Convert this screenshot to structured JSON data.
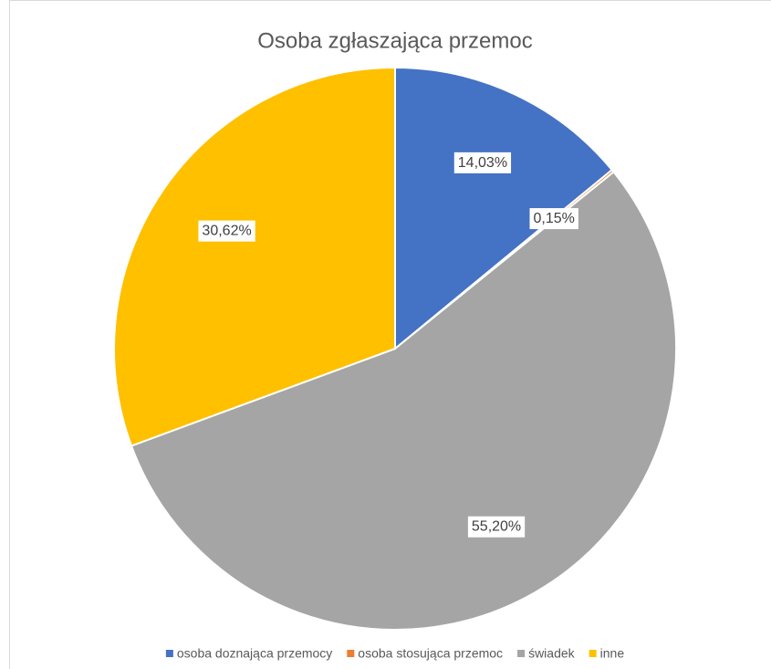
{
  "chart_data": {
    "type": "pie",
    "title": "Osoba zgłaszająca przemoc",
    "categories": [
      "osoba doznająca przemocy",
      "osoba stosująca przemoc",
      "świadek",
      "inne"
    ],
    "values": [
      14.03,
      0.15,
      55.2,
      30.62
    ],
    "value_labels": [
      "14,03%",
      "0,15%",
      "55,20%",
      "30,62%"
    ],
    "colors": [
      "#4472c4",
      "#ed7d31",
      "#a5a5a5",
      "#ffc000"
    ],
    "legend": "bottom"
  }
}
